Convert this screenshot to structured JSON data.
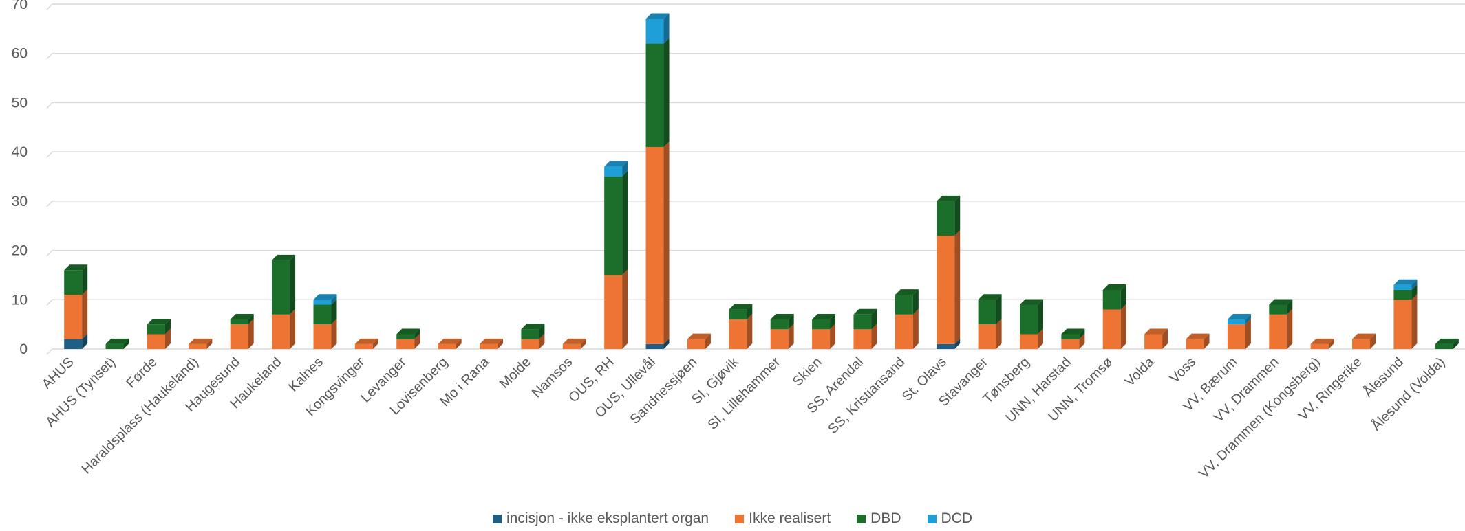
{
  "chart_data": {
    "type": "bar",
    "stacked": true,
    "style": "3d-column",
    "ylim": [
      0,
      70
    ],
    "yticks": [
      0,
      10,
      20,
      30,
      40,
      50,
      60,
      70
    ],
    "grid": true,
    "legend_position": "bottom",
    "categories": [
      "AHUS",
      "AHUS (Tynset)",
      "Førde",
      "Haraldsplass (Haukeland)",
      "Haugesund",
      "Haukeland",
      "Kalnes",
      "Kongsvinger",
      "Levanger",
      "Lovisenberg",
      "Mo i Rana",
      "Molde",
      "Namsos",
      "OUS, RH",
      "OUS, Ullevål",
      "Sandnessjøen",
      "SI, Gjøvik",
      "SI, Lillehammer",
      "Skien",
      "SS, Arendal",
      "SS, Kristiansand",
      "St. Olavs",
      "Stavanger",
      "Tønsberg",
      "UNN, Harstad",
      "UNN, Tromsø",
      "Volda",
      "Voss",
      "VV, Bærum",
      "VV, Drammen",
      "VV, Drammen (Kongsberg)",
      "VV, Ringerike",
      "Ålesund",
      "Ålesund (Volda)"
    ],
    "series": [
      {
        "name": "incisjon - ikke eksplantert organ",
        "color": "#1f5f86",
        "values": [
          2,
          0,
          0,
          0,
          0,
          0,
          0,
          0,
          0,
          0,
          0,
          0,
          0,
          0,
          1,
          0,
          0,
          0,
          0,
          0,
          0,
          1,
          0,
          0,
          0,
          0,
          0,
          0,
          0,
          0,
          0,
          0,
          0,
          0
        ]
      },
      {
        "name": "Ikke realisert",
        "color": "#ed7432",
        "values": [
          9,
          0,
          3,
          1,
          5,
          7,
          5,
          1,
          2,
          1,
          1,
          2,
          1,
          15,
          40,
          2,
          6,
          4,
          4,
          4,
          7,
          22,
          5,
          3,
          2,
          8,
          3,
          2,
          5,
          7,
          1,
          2,
          10,
          0
        ]
      },
      {
        "name": "DBD",
        "color": "#1b6f2a",
        "values": [
          5,
          1,
          2,
          0,
          1,
          11,
          4,
          0,
          1,
          0,
          0,
          2,
          0,
          20,
          21,
          0,
          2,
          2,
          2,
          3,
          4,
          7,
          5,
          6,
          1,
          4,
          0,
          0,
          0,
          2,
          0,
          0,
          2,
          1
        ]
      },
      {
        "name": "DCD",
        "color": "#1e9fd8",
        "values": [
          0,
          0,
          0,
          0,
          0,
          0,
          1,
          0,
          0,
          0,
          0,
          0,
          0,
          2,
          5,
          0,
          0,
          0,
          0,
          0,
          0,
          0,
          0,
          0,
          0,
          0,
          0,
          0,
          1,
          0,
          0,
          0,
          1,
          0
        ]
      }
    ]
  }
}
